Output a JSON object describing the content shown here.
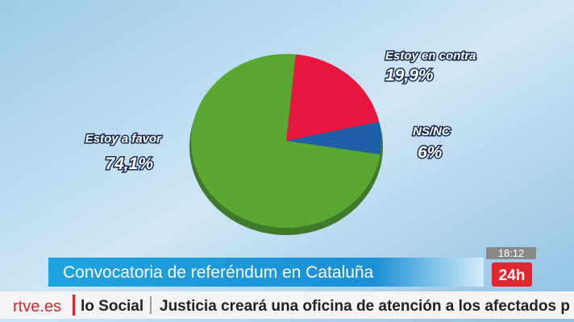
{
  "chart_data": {
    "type": "pie",
    "categories": [
      "Estoy en contra",
      "NS/NC",
      "Estoy a favor"
    ],
    "values": [
      19.9,
      6,
      74.1
    ],
    "value_labels": [
      "19,9%",
      "6%",
      "74,1%"
    ],
    "colors": [
      "#e8173f",
      "#1f5fa8",
      "#5aa832"
    ]
  },
  "banner": {
    "headline": "Convocatoria de referéndum en Cataluña"
  },
  "clock": "18:12",
  "channel": "24h",
  "ticker": {
    "logo": "rtve.es",
    "section": "lo Social",
    "headline": "Justicia creará una oficina de atención a los afectados p"
  }
}
